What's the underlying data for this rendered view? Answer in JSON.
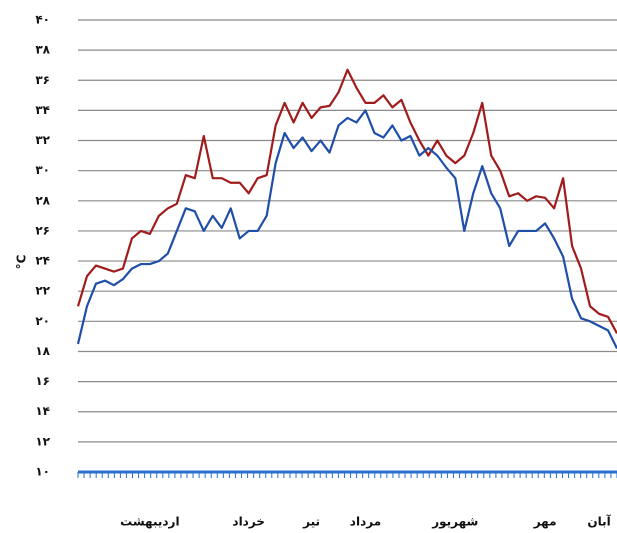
{
  "chart_data": {
    "type": "line",
    "y_label": "°C",
    "categories": [
      null,
      null,
      null,
      null,
      null,
      null,
      null,
      null,
      "اردیبهشت",
      null,
      null,
      null,
      null,
      null,
      null,
      null,
      null,
      null,
      null,
      "خرداد",
      null,
      null,
      null,
      null,
      null,
      null,
      "تیر",
      null,
      null,
      null,
      null,
      null,
      "مرداد",
      null,
      null,
      null,
      null,
      null,
      null,
      null,
      null,
      null,
      "شهریور",
      null,
      null,
      null,
      null,
      null,
      null,
      null,
      null,
      null,
      "مهر",
      null,
      null,
      null,
      null,
      null,
      "آبان",
      null,
      null
    ],
    "series": [
      {
        "color": "#a01c1c",
        "values": [
          21,
          23,
          23.7,
          23.5,
          23.3,
          23.5,
          25.5,
          26,
          25.8,
          27,
          27.5,
          27.8,
          29.7,
          29.5,
          32.3,
          29.5,
          29.5,
          29.2,
          29.2,
          28.5,
          29.5,
          29.7,
          33,
          34.5,
          33.2,
          34.5,
          33.5,
          34.2,
          34.3,
          35.2,
          36.7,
          35.5,
          34.5,
          34.5,
          35,
          34.2,
          34.7,
          33.2,
          32,
          31,
          32,
          31,
          30.5,
          31,
          32.5,
          34.5,
          31,
          30,
          28.3,
          28.5,
          28,
          28.3,
          28.2,
          27.5,
          29.5,
          25,
          23.5,
          21,
          20.5,
          20.3,
          19.2
        ]
      },
      {
        "color": "#1f4fa8",
        "values": [
          18.5,
          21,
          22.5,
          22.7,
          22.4,
          22.8,
          23.5,
          23.8,
          23.8,
          24,
          24.5,
          26,
          27.5,
          27.3,
          26,
          27,
          26.2,
          27.5,
          25.5,
          26,
          26,
          27,
          30.5,
          32.5,
          31.5,
          32.2,
          31.3,
          32,
          31.2,
          33,
          33.5,
          33.2,
          34,
          32.5,
          32.2,
          33,
          32,
          32.3,
          31,
          31.5,
          31,
          30.2,
          29.5,
          26,
          28.5,
          30.3,
          28.5,
          27.5,
          25,
          26,
          26,
          26,
          26.5,
          25.5,
          24.3,
          21.5,
          20.2,
          20,
          19.7,
          19.4,
          18.2
        ]
      }
    ],
    "ylim": [
      10,
      40
    ],
    "yticks": [
      {
        "value": 10,
        "label": "۱۰"
      },
      {
        "value": 12,
        "label": "۱۲"
      },
      {
        "value": 14,
        "label": "۱۴"
      },
      {
        "value": 16,
        "label": "۱۶"
      },
      {
        "value": 18,
        "label": "۱۸"
      },
      {
        "value": 20,
        "label": "۲۰"
      },
      {
        "value": 22,
        "label": "۲۲"
      },
      {
        "value": 24,
        "label": "۲۴"
      },
      {
        "value": 26,
        "label": "۲۶"
      },
      {
        "value": 28,
        "label": "۲۸"
      },
      {
        "value": 30,
        "label": "۳۰"
      },
      {
        "value": 32,
        "label": "۳۲"
      },
      {
        "value": 34,
        "label": "۳۴"
      },
      {
        "value": 36,
        "label": "۳۶"
      },
      {
        "value": 38,
        "label": "۳۸"
      },
      {
        "value": 40,
        "label": "۴۰"
      }
    ],
    "grid": true
  }
}
